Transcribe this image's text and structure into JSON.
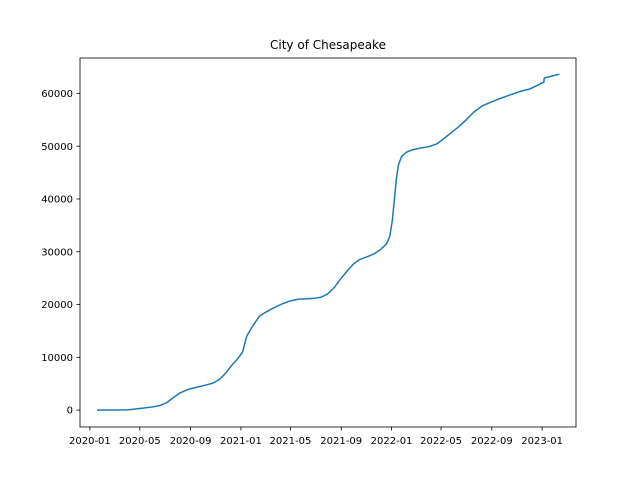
{
  "chart_data": {
    "type": "line",
    "title": "City of Chesapeake",
    "xlabel": "",
    "ylabel": "",
    "grid": false,
    "legend": "none",
    "xlim": [
      "2019-12-08",
      "2023-03-24"
    ],
    "ylim": [
      -3200,
      66700
    ],
    "x_ticks": [
      "2020-01",
      "2020-05",
      "2020-09",
      "2021-01",
      "2021-05",
      "2021-09",
      "2022-01",
      "2022-05",
      "2022-09",
      "2023-01"
    ],
    "y_ticks": [
      0,
      10000,
      20000,
      30000,
      40000,
      50000,
      60000
    ],
    "y_tick_labels": [
      "0",
      "10000",
      "20000",
      "30000",
      "40000",
      "50000",
      "60000"
    ],
    "series": [
      {
        "color": "#1f77b4",
        "points": [
          [
            "2020-01-20",
            0
          ],
          [
            "2020-03-01",
            10
          ],
          [
            "2020-04-01",
            50
          ],
          [
            "2020-05-01",
            300
          ],
          [
            "2020-06-01",
            600
          ],
          [
            "2020-06-20",
            900
          ],
          [
            "2020-07-05",
            1400
          ],
          [
            "2020-07-20",
            2300
          ],
          [
            "2020-08-05",
            3200
          ],
          [
            "2020-08-25",
            3900
          ],
          [
            "2020-09-15",
            4300
          ],
          [
            "2020-10-05",
            4700
          ],
          [
            "2020-10-25",
            5100
          ],
          [
            "2020-11-10",
            5800
          ],
          [
            "2020-11-25",
            7000
          ],
          [
            "2020-12-10",
            8500
          ],
          [
            "2020-12-25",
            9800
          ],
          [
            "2021-01-05",
            11000
          ],
          [
            "2021-01-15",
            14000
          ],
          [
            "2021-01-30",
            16000
          ],
          [
            "2021-02-15",
            17800
          ],
          [
            "2021-03-01",
            18500
          ],
          [
            "2021-03-20",
            19300
          ],
          [
            "2021-04-10",
            20100
          ],
          [
            "2021-05-01",
            20700
          ],
          [
            "2021-05-20",
            21000
          ],
          [
            "2021-06-10",
            21100
          ],
          [
            "2021-07-01",
            21200
          ],
          [
            "2021-07-15",
            21400
          ],
          [
            "2021-07-30",
            22000
          ],
          [
            "2021-08-15",
            23200
          ],
          [
            "2021-08-30",
            24800
          ],
          [
            "2021-09-15",
            26300
          ],
          [
            "2021-10-01",
            27700
          ],
          [
            "2021-10-15",
            28500
          ],
          [
            "2021-11-01",
            29000
          ],
          [
            "2021-11-20",
            29600
          ],
          [
            "2021-12-05",
            30400
          ],
          [
            "2021-12-20",
            31500
          ],
          [
            "2021-12-28",
            33000
          ],
          [
            "2022-01-03",
            36000
          ],
          [
            "2022-01-08",
            40000
          ],
          [
            "2022-01-13",
            44000
          ],
          [
            "2022-01-18",
            46500
          ],
          [
            "2022-01-25",
            48000
          ],
          [
            "2022-02-05",
            48800
          ],
          [
            "2022-02-20",
            49300
          ],
          [
            "2022-03-10",
            49600
          ],
          [
            "2022-04-01",
            49900
          ],
          [
            "2022-04-20",
            50400
          ],
          [
            "2022-05-01",
            51000
          ],
          [
            "2022-05-20",
            52200
          ],
          [
            "2022-06-10",
            53500
          ],
          [
            "2022-07-01",
            55000
          ],
          [
            "2022-07-20",
            56500
          ],
          [
            "2022-08-10",
            57700
          ],
          [
            "2022-09-01",
            58400
          ],
          [
            "2022-09-20",
            59000
          ],
          [
            "2022-10-15",
            59700
          ],
          [
            "2022-11-10",
            60400
          ],
          [
            "2022-12-01",
            60800
          ],
          [
            "2022-12-20",
            61500
          ],
          [
            "2023-01-01",
            62000
          ],
          [
            "2023-01-05",
            62100
          ],
          [
            "2023-01-06",
            62900
          ],
          [
            "2023-01-20",
            63200
          ],
          [
            "2023-02-10",
            63600
          ]
        ]
      }
    ]
  }
}
